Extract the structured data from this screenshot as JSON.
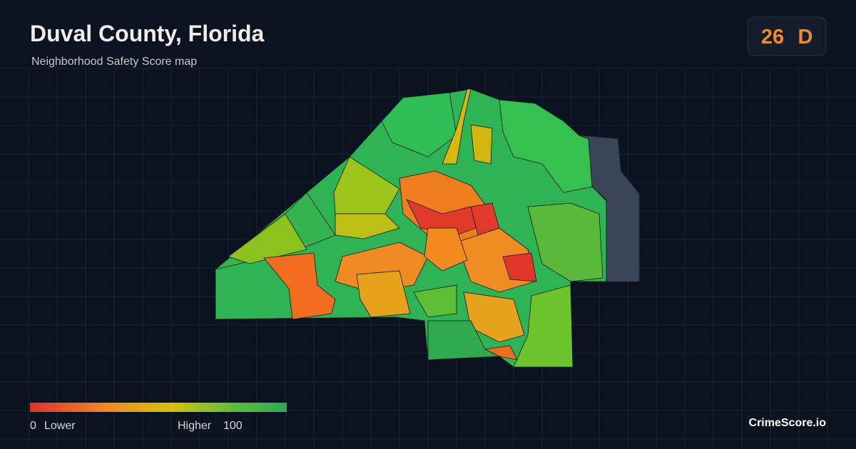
{
  "header": {
    "title": "Duval County, Florida",
    "subtitle": "Neighborhood Safety Score map"
  },
  "badge": {
    "score": "26",
    "grade": "D"
  },
  "legend": {
    "min": "0",
    "min_label": "Lower",
    "max_label": "Higher",
    "max": "100"
  },
  "footer": {
    "brand": "CrimeScore.io"
  }
}
